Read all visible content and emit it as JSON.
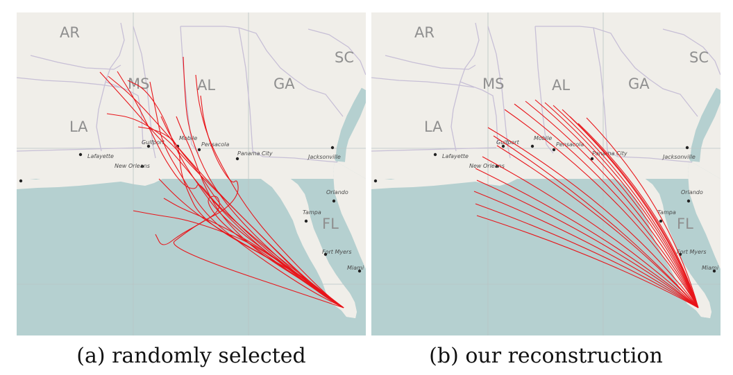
{
  "panels": [
    {
      "id": "a",
      "caption": "(a) randomly selected",
      "state_labels": [
        "AR",
        "SC",
        "MS",
        "AL",
        "GA",
        "LA",
        "FL"
      ],
      "city_labels": [
        "Lafayette",
        "Gulfport",
        "Mobile",
        "Pensacola",
        "Panama City",
        "Jacksonville",
        "New Orleans",
        "Orlando",
        "Tampa",
        "Fort Myers",
        "Miami"
      ]
    },
    {
      "id": "b",
      "caption": "(b) our reconstruction",
      "state_labels": [
        "AR",
        "SC",
        "MS",
        "AL",
        "GA",
        "LA",
        "FL"
      ],
      "city_labels": [
        "Lafayette",
        "Gulfport",
        "Mobile",
        "Pensacola",
        "Panama City",
        "Jacksonville",
        "New Orleans",
        "Orlando",
        "Tampa",
        "Fort Myers",
        "Miami"
      ]
    }
  ],
  "colors": {
    "land": "#f0eee9",
    "water": "#b5d0d0",
    "border": "#c7bfd6",
    "graticule": "#b9c4c4",
    "track": "#e8151a"
  },
  "tracks_origin": "south-florida tip"
}
